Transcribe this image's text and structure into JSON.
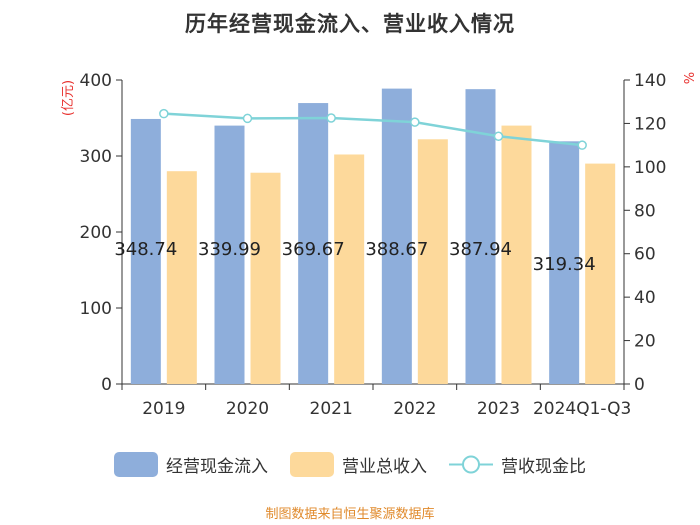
{
  "chart_data": {
    "type": "bar",
    "title": "历年经营现金流入、营业收入情况",
    "categories": [
      "2019",
      "2020",
      "2021",
      "2022",
      "2023",
      "2024Q1-Q3"
    ],
    "series": [
      {
        "name": "经营现金流入",
        "type": "bar",
        "axis": "left",
        "color": "#8eaedb",
        "values": [
          348.74,
          339.99,
          369.67,
          388.67,
          387.94,
          319.34
        ],
        "labels": [
          "348.74",
          "339.99",
          "369.67",
          "388.67",
          "387.94",
          "319.34"
        ]
      },
      {
        "name": "营业总收入",
        "type": "bar",
        "axis": "left",
        "color": "#fdd99b",
        "values": [
          280,
          278,
          302,
          322,
          340,
          290
        ]
      },
      {
        "name": "营收现金比",
        "type": "line",
        "axis": "right",
        "color": "#7fd3d8",
        "values": [
          124.5,
          122.3,
          122.5,
          120.6,
          114.1,
          110.0
        ]
      }
    ],
    "left_axis": {
      "label": "(亿元)",
      "min": 0,
      "max": 400,
      "ticks": [
        0,
        100,
        200,
        300,
        400
      ],
      "color": "#e8312e"
    },
    "right_axis": {
      "label": "%",
      "min": 0,
      "max": 140,
      "ticks": [
        0,
        20,
        40,
        60,
        80,
        100,
        120,
        140
      ],
      "color": "#e8312e"
    },
    "grid": false,
    "legend_position": "bottom"
  },
  "source": "制图数据来自恒生聚源数据库"
}
